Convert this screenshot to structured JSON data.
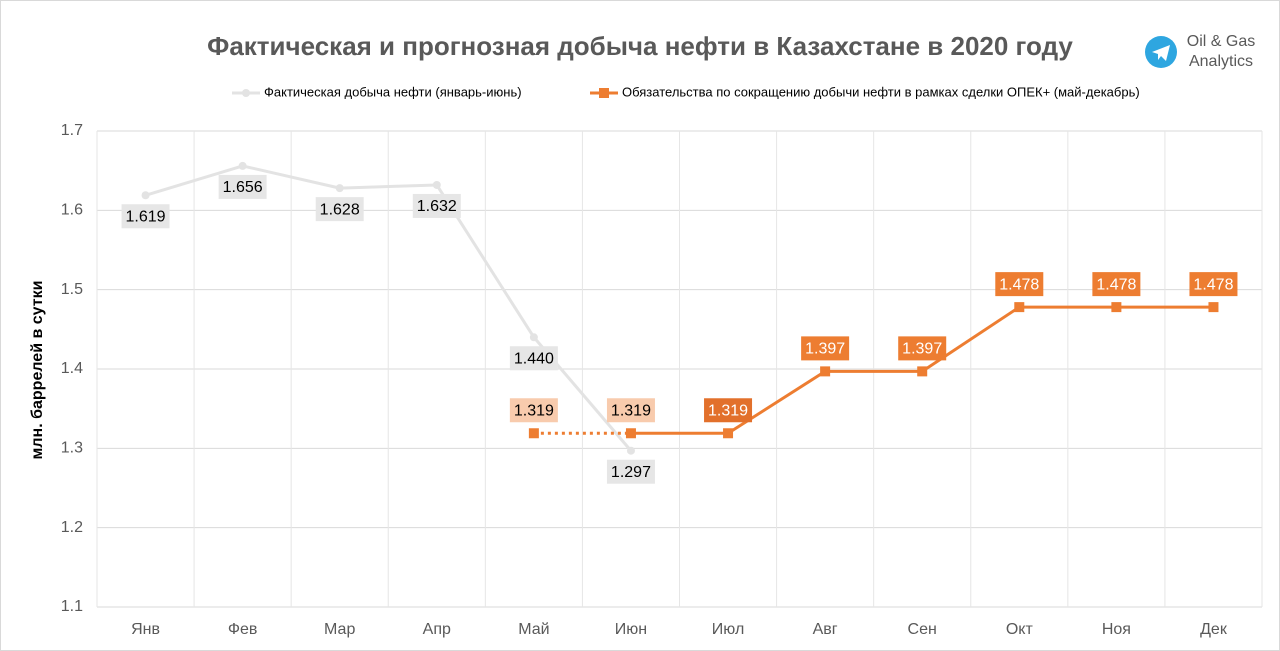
{
  "chart_data": {
    "type": "line",
    "title": "Фактическая и прогнозная добыча нефти в Казахстане в 2020 году",
    "y_label": "млн. баррелей в сутки",
    "annotations": [
      "Oil & Gas",
      "Analytics"
    ],
    "categories": [
      "Янв",
      "Фев",
      "Мар",
      "Апр",
      "Май",
      "Июн",
      "Июл",
      "Авг",
      "Сен",
      "Окт",
      "Ноя",
      "Дек"
    ],
    "series": [
      {
        "name": "Фактическая добыча нефти (январь-июнь)",
        "color": "#e3e3e3",
        "marker": "circle",
        "label_position": "below",
        "values": [
          1.619,
          1.656,
          1.628,
          1.632,
          1.44,
          1.297,
          null,
          null,
          null,
          null,
          null,
          null
        ],
        "value_labels": [
          "1.619",
          "1.656",
          "1.628",
          "1.632",
          "1.440",
          "1.297",
          null,
          null,
          null,
          null,
          null,
          null
        ],
        "label_colors": [
          "#e6e6e6",
          "#e6e6e6",
          "#e6e6e6",
          "#e6e6e6",
          "#e6e6e6",
          "#e6e6e6",
          null,
          null,
          null,
          null,
          null,
          null
        ]
      },
      {
        "name": "Обязательства по сокращению добычи нефти в рамках сделки ОПЕК+ (май-декабрь)",
        "color": "#ed7d31",
        "marker": "square",
        "label_position": "above",
        "values": [
          null,
          null,
          null,
          null,
          1.319,
          1.319,
          1.319,
          1.397,
          1.397,
          1.478,
          1.478,
          1.478
        ],
        "value_labels": [
          null,
          null,
          null,
          null,
          "1.319",
          "1.319",
          "1.319",
          "1.397",
          "1.397",
          "1.478",
          "1.478",
          "1.478"
        ],
        "label_colors": [
          null,
          null,
          null,
          null,
          "#f8cbad",
          "#f8cbad",
          "#e2702b",
          "#ed7d31",
          "#ed7d31",
          "#ed7d31",
          "#ed7d31",
          "#ed7d31"
        ],
        "dotted_segments": [
          4
        ]
      }
    ],
    "ylim": [
      1.1,
      1.7
    ],
    "yticks": [
      1.1,
      1.2,
      1.3,
      1.4,
      1.5,
      1.6,
      1.7
    ],
    "grid": true
  }
}
